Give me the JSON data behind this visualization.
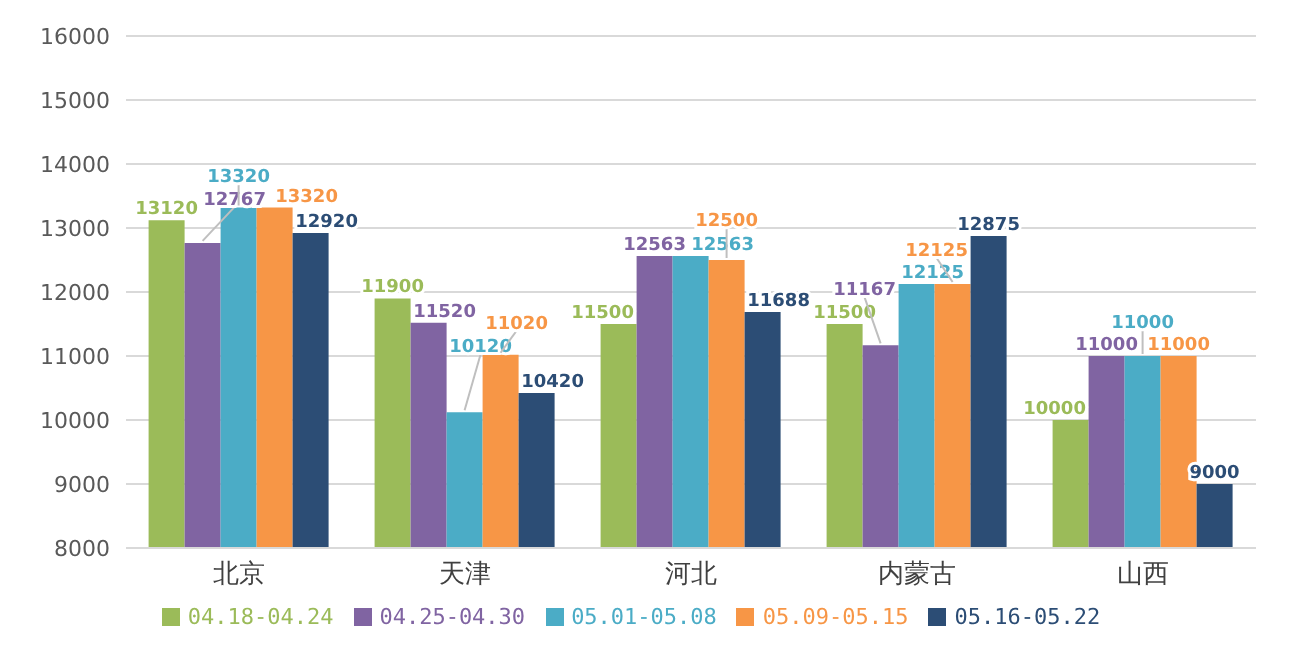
{
  "chart_data": {
    "type": "bar",
    "categories": [
      "北京",
      "天津",
      "河北",
      "内蒙古",
      "山西"
    ],
    "series": [
      {
        "name": "04.18-04.24",
        "color": "#9bbb59",
        "values": [
          13120,
          11900,
          11500,
          11500,
          10000
        ]
      },
      {
        "name": "04.25-04.30",
        "color": "#8064a2",
        "values": [
          12767,
          11520,
          12563,
          11167,
          11000
        ]
      },
      {
        "name": "05.01-05.08",
        "color": "#4bacc6",
        "values": [
          13320,
          10120,
          12563,
          12125,
          11000
        ]
      },
      {
        "name": "05.09-05.15",
        "color": "#f79646",
        "values": [
          13320,
          11020,
          12500,
          12125,
          11000
        ]
      },
      {
        "name": "05.16-05.22",
        "color": "#2c4d75",
        "values": [
          12920,
          10420,
          11688,
          12875,
          9000
        ]
      }
    ],
    "ylim": [
      8000,
      16000
    ],
    "yticks": [
      8000,
      9000,
      10000,
      11000,
      12000,
      13000,
      14000,
      15000,
      16000
    ],
    "grid": "y",
    "legend": "bottom",
    "data_labels": true
  }
}
